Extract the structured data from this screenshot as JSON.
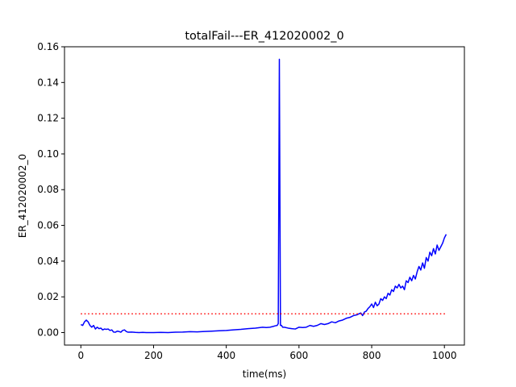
{
  "chart_data": {
    "type": "line",
    "title": "totalFail---ER_412020002_0",
    "xlabel": "time(ms)",
    "ylabel": "ER_412020002_0",
    "xlim": [
      -45,
      1055
    ],
    "ylim": [
      -0.007,
      0.16
    ],
    "x_ticks": [
      0,
      200,
      400,
      600,
      800,
      1000
    ],
    "x_tick_labels": [
      "0",
      "200",
      "400",
      "600",
      "800",
      "1000"
    ],
    "y_ticks": [
      0.0,
      0.02,
      0.04,
      0.06,
      0.08,
      0.1,
      0.12,
      0.14,
      0.16
    ],
    "y_tick_labels": [
      "0.00",
      "0.02",
      "0.04",
      "0.06",
      "0.08",
      "0.10",
      "0.12",
      "0.14",
      "0.16"
    ],
    "grid": false,
    "series": [
      {
        "color": "#0000ff",
        "style": "solid",
        "x": [
          0,
          5,
          10,
          15,
          20,
          25,
          30,
          35,
          40,
          45,
          50,
          55,
          60,
          65,
          70,
          75,
          80,
          85,
          90,
          95,
          100,
          105,
          110,
          115,
          120,
          125,
          130,
          140,
          150,
          160,
          170,
          180,
          200,
          220,
          240,
          260,
          280,
          300,
          320,
          340,
          360,
          380,
          400,
          420,
          440,
          460,
          480,
          500,
          510,
          520,
          530,
          535,
          540,
          543,
          546,
          549,
          552,
          555,
          560,
          570,
          580,
          590,
          600,
          610,
          620,
          630,
          640,
          650,
          660,
          670,
          680,
          690,
          700,
          710,
          720,
          730,
          740,
          750,
          760,
          765,
          770,
          775,
          780,
          785,
          790,
          795,
          800,
          805,
          810,
          815,
          820,
          825,
          830,
          835,
          840,
          845,
          850,
          855,
          860,
          865,
          870,
          875,
          880,
          885,
          890,
          895,
          900,
          905,
          910,
          915,
          920,
          925,
          930,
          935,
          940,
          945,
          950,
          955,
          960,
          965,
          970,
          975,
          980,
          985,
          990,
          995,
          1000,
          1005
        ],
        "y": [
          0.0045,
          0.004,
          0.006,
          0.007,
          0.006,
          0.004,
          0.003,
          0.004,
          0.002,
          0.003,
          0.0022,
          0.0025,
          0.0015,
          0.002,
          0.0018,
          0.002,
          0.0012,
          0.0015,
          0.0003,
          0.0002,
          0.0008,
          0.0006,
          0.0002,
          0.0012,
          0.0015,
          0.0006,
          0.0002,
          0.0003,
          0.0001,
          0.0,
          0.0001,
          0.0,
          0.0,
          0.0001,
          0.0,
          0.0002,
          0.0003,
          0.0005,
          0.0004,
          0.0006,
          0.0008,
          0.001,
          0.0012,
          0.0015,
          0.0018,
          0.0022,
          0.0025,
          0.003,
          0.0028,
          0.003,
          0.0035,
          0.0038,
          0.004,
          0.005,
          0.153,
          0.004,
          0.004,
          0.003,
          0.003,
          0.0025,
          0.0022,
          0.002,
          0.003,
          0.0028,
          0.003,
          0.004,
          0.0035,
          0.004,
          0.005,
          0.0045,
          0.005,
          0.006,
          0.0055,
          0.0065,
          0.007,
          0.008,
          0.0085,
          0.0095,
          0.01,
          0.0105,
          0.011,
          0.0095,
          0.0115,
          0.012,
          0.0135,
          0.0145,
          0.016,
          0.014,
          0.017,
          0.015,
          0.016,
          0.019,
          0.018,
          0.02,
          0.019,
          0.022,
          0.021,
          0.024,
          0.023,
          0.026,
          0.025,
          0.027,
          0.025,
          0.026,
          0.024,
          0.029,
          0.028,
          0.031,
          0.029,
          0.032,
          0.03,
          0.034,
          0.037,
          0.035,
          0.039,
          0.036,
          0.042,
          0.04,
          0.045,
          0.043,
          0.047,
          0.044,
          0.049,
          0.046,
          0.048,
          0.05,
          0.053,
          0.055
        ]
      },
      {
        "color": "#ff0000",
        "style": "dotted",
        "x": [
          0,
          1005
        ],
        "y": [
          0.0105,
          0.0105
        ]
      }
    ]
  }
}
